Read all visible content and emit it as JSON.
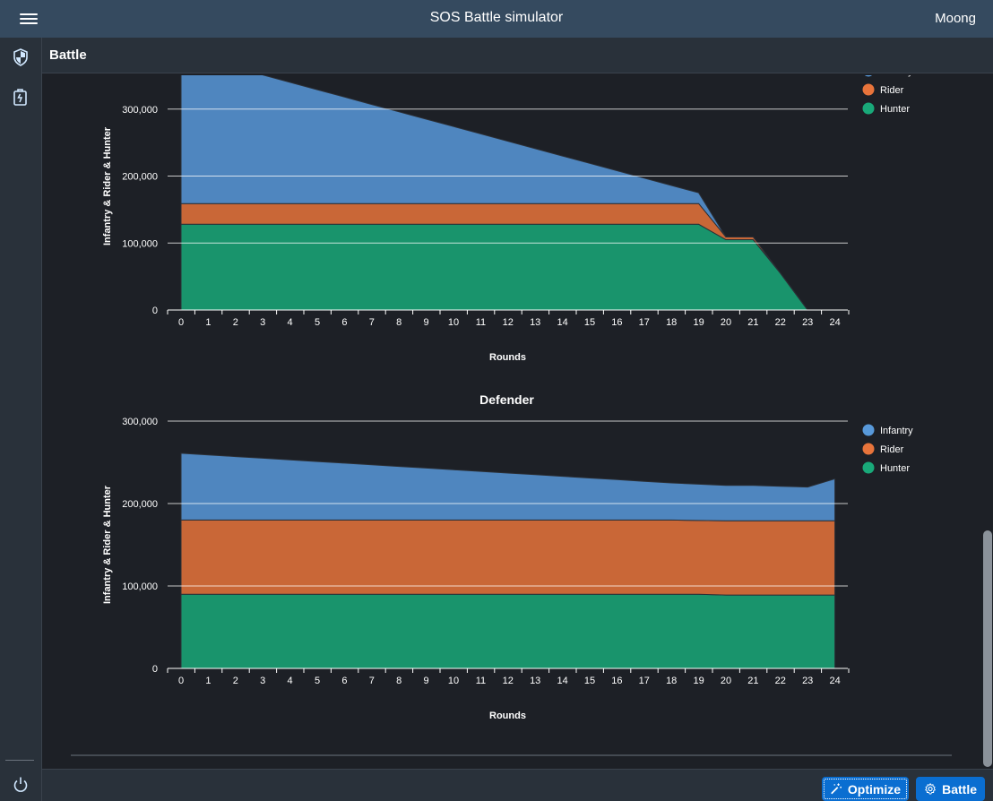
{
  "shell": {
    "title": "SOS Battle simulator",
    "user": "Moong"
  },
  "page": {
    "title": "Battle"
  },
  "nav": [
    {
      "icon": "shield-icon"
    },
    {
      "icon": "battle-report-icon"
    },
    {
      "icon": "power-icon"
    }
  ],
  "footer": {
    "optimize_label": "Optimize",
    "battle_label": "Battle"
  },
  "colors": {
    "infantry": "#5899da",
    "rider": "#e8743b",
    "hunter": "#19a979"
  },
  "chart_data": [
    {
      "type": "area",
      "stacked": true,
      "title": "",
      "xlabel": "Rounds",
      "ylabel": "Infantry & Rider & Hunter",
      "ylim": [
        0,
        380000
      ],
      "yticks": [
        0,
        100000,
        200000,
        300000
      ],
      "ytick_labels": [
        "0",
        "100,000",
        "200,000",
        "300,000"
      ],
      "x": [
        0,
        1,
        2,
        3,
        4,
        5,
        6,
        7,
        8,
        9,
        10,
        11,
        12,
        13,
        14,
        15,
        16,
        17,
        18,
        19,
        20,
        21,
        22,
        23,
        24
      ],
      "legend_position": "right",
      "series": [
        {
          "name": "Hunter",
          "values": [
            128000,
            128000,
            128000,
            128000,
            128000,
            128000,
            128000,
            128000,
            128000,
            128000,
            128000,
            128000,
            128000,
            128000,
            128000,
            128000,
            128000,
            128000,
            128000,
            128000,
            105000,
            105000,
            55000,
            0,
            0
          ]
        },
        {
          "name": "Rider",
          "values": [
            31000,
            31000,
            31000,
            31000,
            31000,
            31000,
            31000,
            31000,
            31000,
            31000,
            31000,
            31000,
            31000,
            31000,
            31000,
            31000,
            31000,
            31000,
            31000,
            31000,
            4000,
            4000,
            0,
            0,
            0
          ]
        },
        {
          "name": "Infantry",
          "values": [
            218000,
            214000,
            203000,
            192000,
            181000,
            170000,
            159000,
            148000,
            137000,
            126000,
            115000,
            104000,
            93000,
            82000,
            71000,
            60000,
            49000,
            38000,
            27000,
            16000,
            0,
            0,
            0,
            0,
            0
          ]
        }
      ]
    },
    {
      "type": "area",
      "stacked": true,
      "title": "Defender",
      "xlabel": "Rounds",
      "ylabel": "Infantry & Rider & Hunter",
      "ylim": [
        0,
        300000
      ],
      "yticks": [
        0,
        100000,
        200000,
        300000
      ],
      "ytick_labels": [
        "0",
        "100,000",
        "200,000",
        "300,000"
      ],
      "x": [
        0,
        1,
        2,
        3,
        4,
        5,
        6,
        7,
        8,
        9,
        10,
        11,
        12,
        13,
        14,
        15,
        16,
        17,
        18,
        19,
        20,
        21,
        22,
        23,
        24
      ],
      "legend_position": "right",
      "series": [
        {
          "name": "Hunter",
          "values": [
            90000,
            90000,
            90000,
            90000,
            90000,
            90000,
            90000,
            90000,
            90000,
            90000,
            90000,
            90000,
            90000,
            90000,
            90000,
            90000,
            90000,
            90000,
            90000,
            90000,
            89000,
            89000,
            89000,
            89000,
            89000
          ]
        },
        {
          "name": "Rider",
          "values": [
            90000,
            90000,
            90000,
            90000,
            90000,
            90000,
            90000,
            90000,
            90000,
            90000,
            90000,
            90000,
            90000,
            90000,
            90000,
            90000,
            90000,
            90000,
            90000,
            89500,
            90000,
            90000,
            90000,
            90000,
            90000
          ]
        },
        {
          "name": "Infantry",
          "values": [
            81000,
            79000,
            77000,
            75000,
            73000,
            71000,
            69000,
            67000,
            65000,
            63000,
            61000,
            59000,
            57000,
            55000,
            53000,
            51000,
            49000,
            47000,
            45000,
            44000,
            43000,
            43000,
            42000,
            41000,
            51000
          ]
        }
      ]
    }
  ]
}
